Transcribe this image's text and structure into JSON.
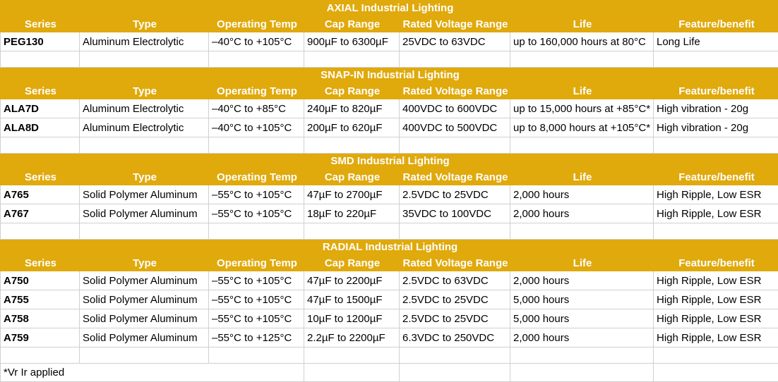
{
  "colors": {
    "header_bg": "#E0A90C",
    "header_text": "#FFFFFF",
    "grid_line": "#D0D0D0",
    "body_text": "#000000"
  },
  "table": {
    "columns": [
      "Series",
      "Type",
      "Operating Temp",
      "Cap Range",
      "Rated Voltage Range",
      "Life",
      "Feature/benefit"
    ],
    "sections": [
      {
        "title": "AXIAL Industrial Lighting",
        "rows": [
          [
            "PEG130",
            "Aluminum Electrolytic",
            "–40°C to +105°C",
            "900µF to 6300µF",
            "25VDC to 63VDC",
            "up to 160,000 hours at 80°C",
            "Long Life"
          ]
        ]
      },
      {
        "title": "SNAP-IN Industrial Lighting",
        "rows": [
          [
            "ALA7D",
            "Aluminum Electrolytic",
            "–40°C to +85°C",
            "240µF to 820µF",
            "400VDC to 600VDC",
            "up to 15,000 hours at +85°C*",
            "High vibration - 20g"
          ],
          [
            "ALA8D",
            "Aluminum Electrolytic",
            "–40°C to +105°C",
            "200µF to 620µF",
            "400VDC to 500VDC",
            "up to 8,000 hours at +105°C*",
            "High vibration - 20g"
          ]
        ]
      },
      {
        "title": "SMD Industrial Lighting",
        "rows": [
          [
            "A765",
            "Solid Polymer Aluminum",
            "–55°C to +105°C",
            "47µF to 2700µF",
            "2.5VDC to 25VDC",
            "2,000 hours",
            "High Ripple, Low ESR"
          ],
          [
            "A767",
            "Solid Polymer Aluminum",
            "–55°C to +105°C",
            "18µF to 220µF",
            "35VDC to 100VDC",
            "2,000 hours",
            "High Ripple, Low ESR"
          ]
        ]
      },
      {
        "title": "RADIAL Industrial Lighting",
        "rows": [
          [
            "A750",
            "Solid Polymer Aluminum",
            "–55°C to +105°C",
            "47µF to 2200µF",
            "2.5VDC to 63VDC",
            "2,000 hours",
            "High Ripple, Low ESR"
          ],
          [
            "A755",
            "Solid Polymer Aluminum",
            "–55°C to +105°C",
            "47µF to 1500µF",
            "2.5VDC to 25VDC",
            "5,000 hours",
            "High Ripple, Low ESR"
          ],
          [
            "A758",
            "Solid Polymer Aluminum",
            "–55°C to +105°C",
            "10µF to 1200µF",
            "2.5VDC to 25VDC",
            "5,000 hours",
            "High Ripple, Low ESR"
          ],
          [
            "A759",
            "Solid Polymer Aluminum",
            "–55°C to +125°C",
            "2.2µF to 2200µF",
            "6.3VDC to 250VDC",
            "2,000 hours",
            "High Ripple, Low ESR"
          ]
        ]
      }
    ],
    "footnote": "*Vr Ir applied"
  }
}
